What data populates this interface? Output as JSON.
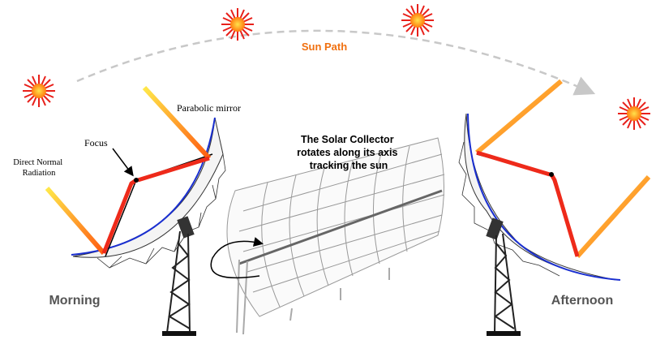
{
  "labels": {
    "sun_path": "Sun Path",
    "parabolic_mirror": "Parabolic mirror",
    "focus": "Focus",
    "direct_normal_radiation": [
      "Direct Normal",
      "Radiation"
    ],
    "collector_caption": [
      "The Solar Collector",
      "rotates along its axis",
      "tracking the sun"
    ],
    "morning": "Morning",
    "afternoon": "Afternoon"
  }
}
